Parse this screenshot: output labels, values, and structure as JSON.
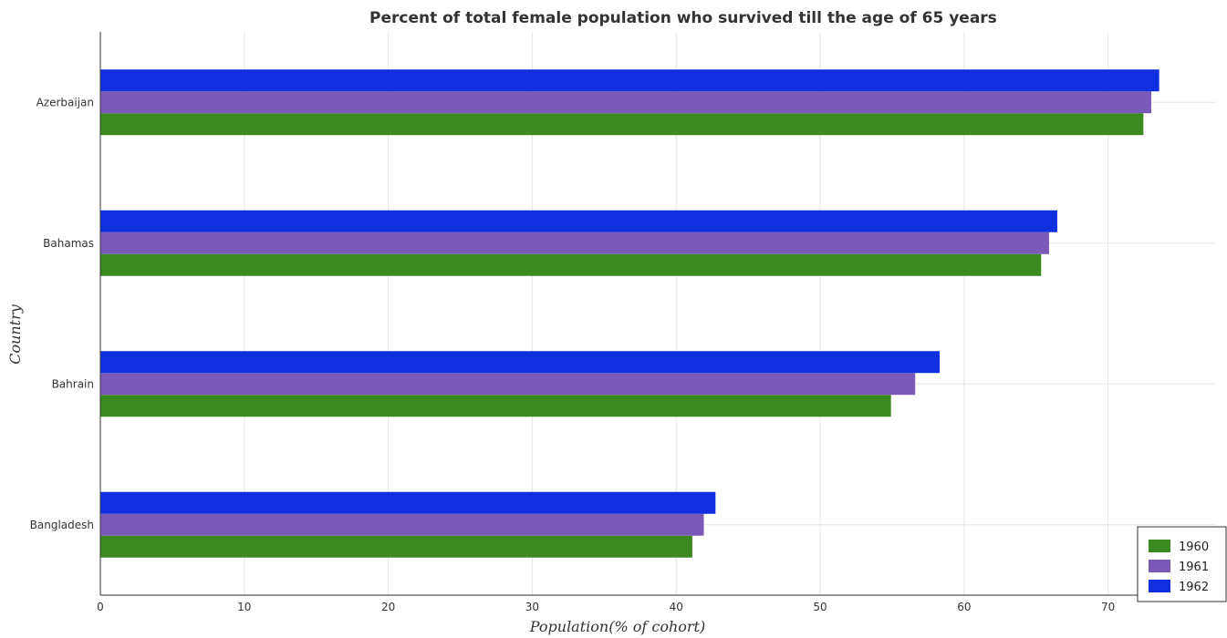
{
  "chart_data": {
    "type": "bar",
    "orientation": "horizontal",
    "title": "Percent of total female population who survived till the age of 65 years",
    "xlabel": "Population(% of cohort)",
    "ylabel": "Country",
    "categories": [
      "Azerbaijan",
      "Bahamas",
      "Bahrain",
      "Bangladesh"
    ],
    "series": [
      {
        "name": "1960",
        "color": "#3a8a1f",
        "values": [
          72.45,
          65.35,
          54.92,
          41.12
        ]
      },
      {
        "name": "1961",
        "color": "#7a5ab8",
        "values": [
          73.0,
          65.9,
          56.6,
          41.92
        ]
      },
      {
        "name": "1962",
        "color": "#1030e0",
        "values": [
          73.55,
          66.47,
          58.3,
          42.73
        ]
      }
    ],
    "xlim": [
      0,
      77.5
    ],
    "xticks": [
      0,
      10,
      20,
      30,
      40,
      50,
      60,
      70
    ],
    "xtick_labels": [
      "0",
      "10",
      "20",
      "30",
      "40",
      "50",
      "60",
      "70"
    ],
    "grid": true,
    "legend_position": "bottom-right"
  }
}
